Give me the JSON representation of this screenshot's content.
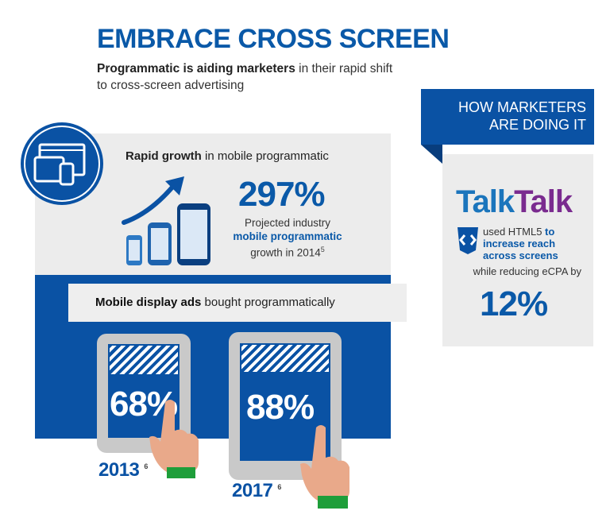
{
  "title": "EMBRACE CROSS SCREEN",
  "subtitle": {
    "bold": "Programmatic is aiding marketers",
    "rest": " in their rapid shift to cross-screen advertising"
  },
  "growth": {
    "bold": "Rapid growth",
    "rest": " in mobile programmatic",
    "percent": "297%",
    "line1": "Projected industry",
    "bold2": "mobile programmatic",
    "line3": "growth in 2014",
    "footnote": "5"
  },
  "display": {
    "bold": "Mobile display ads",
    "rest": " bought programmatically"
  },
  "tablets": [
    {
      "percent": "68%",
      "year": "2013",
      "footnote": "6"
    },
    {
      "percent": "88%",
      "year": "2017",
      "footnote": "6"
    }
  ],
  "card": {
    "heading_line1": "HOW MARKETERS",
    "heading_line2": "ARE DOING IT",
    "brand_a": "Talk",
    "brand_b": "Talk",
    "used": "used HTML5 ",
    "used_bold": "to increase reach across screens",
    "reduce": "while reducing eCPA by",
    "percent": "12%"
  },
  "colors": {
    "brand_blue": "#0a52a4",
    "talk_blue": "#1b75bc",
    "talk_purple": "#7a2b8f",
    "panel_gray": "#ececec",
    "skin": "#e9a98a",
    "cuff_green": "#1e9e3a"
  },
  "icons": {
    "devices": "devices-icon",
    "arrow": "growth-arrow-icon",
    "phones": "smartphones-icon",
    "html5": "html5-shield-icon",
    "hand": "pointing-hand-icon"
  }
}
